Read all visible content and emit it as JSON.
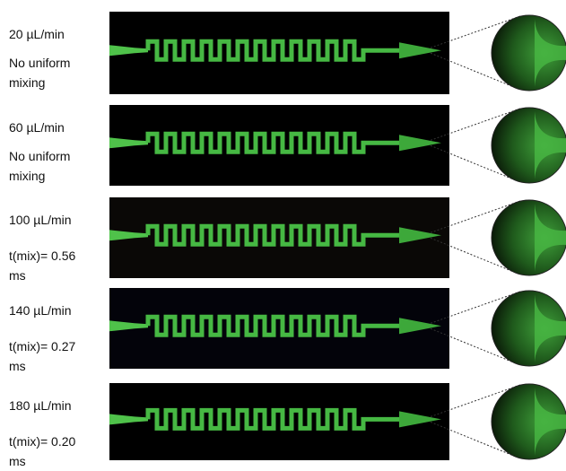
{
  "rows": [
    {
      "flow_rate": "20 µL/min",
      "note": "No uniform mixing"
    },
    {
      "flow_rate": "60 µL/min",
      "note": "No uniform mixing"
    },
    {
      "flow_rate": "100 µL/min",
      "note": "t(mix)= 0.56 ms"
    },
    {
      "flow_rate": "140 µL/min",
      "note": "t(mix)= 0.27 ms"
    },
    {
      "flow_rate": "180 µL/min",
      "note": "t(mix)= 0.20 ms"
    }
  ]
}
